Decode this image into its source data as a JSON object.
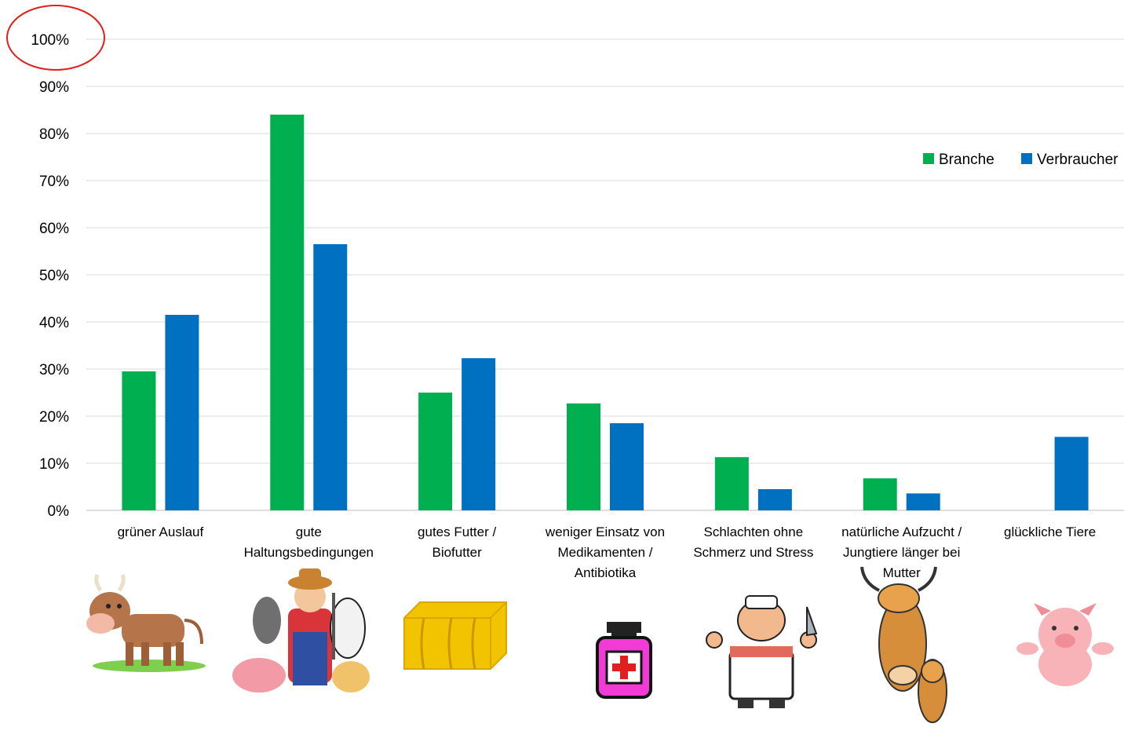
{
  "chart_data": {
    "type": "bar",
    "categories": [
      [
        "grüner Auslauf"
      ],
      [
        "gute",
        "Haltungsbedingungen"
      ],
      [
        "gutes Futter /",
        "Biofutter"
      ],
      [
        "weniger Einsatz von",
        "Medikamenten /",
        "Antibiotika"
      ],
      [
        "Schlachten ohne",
        "Schmerz und Stress"
      ],
      [
        "natürliche Aufzucht /",
        "Jungtiere länger bei",
        "Mutter"
      ],
      [
        "glückliche Tiere"
      ]
    ],
    "series": [
      {
        "name": "Branche",
        "color": "#00b050",
        "values": [
          29.5,
          84,
          25,
          22.7,
          11.3,
          6.8,
          0
        ]
      },
      {
        "name": "Verbraucher",
        "color": "#0070c0",
        "values": [
          41.5,
          56.5,
          32.3,
          18.5,
          4.5,
          3.6,
          15.6
        ]
      }
    ],
    "yticks": [
      "0%",
      "10%",
      "20%",
      "30%",
      "40%",
      "50%",
      "60%",
      "70%",
      "80%",
      "90%",
      "100%"
    ],
    "ylim": [
      0,
      100
    ],
    "grid": true,
    "legend": "top-right",
    "icons": [
      "cow-icon",
      "farmer-animals-icon",
      "hay-bale-icon",
      "medicine-bottle-icon",
      "butcher-icon",
      "cow-calf-icon",
      "pig-icon"
    ],
    "annotation_color": "#e0201e"
  }
}
